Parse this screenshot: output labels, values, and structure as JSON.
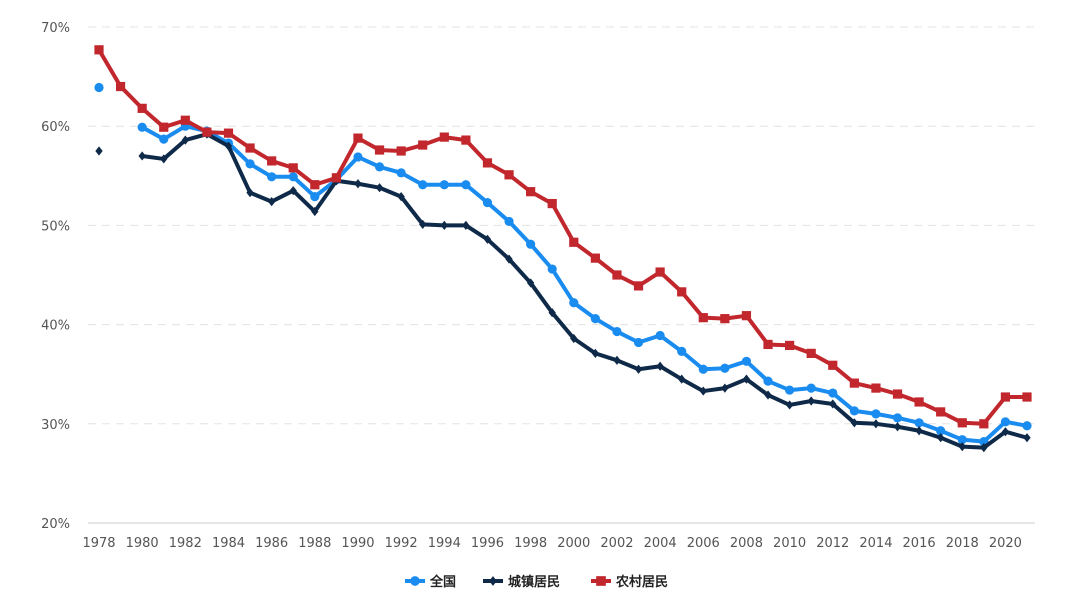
{
  "chart_data": {
    "type": "line",
    "title": "",
    "xlabel": "",
    "ylabel": "",
    "ylim": [
      20,
      70
    ],
    "y_ticks": [
      20,
      30,
      40,
      50,
      60,
      70
    ],
    "y_tick_labels": [
      "20%",
      "30%",
      "40%",
      "50%",
      "60%",
      "70%"
    ],
    "xlim": [
      1978,
      2021
    ],
    "x_ticks": [
      "1978",
      "1980",
      "1982",
      "1984",
      "1986",
      "1988",
      "1990",
      "1992",
      "1994",
      "1996",
      "1998",
      "2000",
      "2002",
      "2004",
      "2006",
      "2008",
      "2010",
      "2012",
      "2014",
      "2016",
      "2018",
      "2020"
    ],
    "grid": true,
    "legend_position": "bottom-center",
    "x": [
      1978,
      1979,
      1980,
      1981,
      1982,
      1983,
      1984,
      1985,
      1986,
      1987,
      1988,
      1989,
      1990,
      1991,
      1992,
      1993,
      1994,
      1995,
      1996,
      1997,
      1998,
      1999,
      2000,
      2001,
      2002,
      2003,
      2004,
      2005,
      2006,
      2007,
      2008,
      2009,
      2010,
      2011,
      2012,
      2013,
      2014,
      2015,
      2016,
      2017,
      2018,
      2019,
      2020,
      2021
    ],
    "series": [
      {
        "name": "全国",
        "color": "#1a8cf0",
        "marker": "circle",
        "values": [
          63.9,
          null,
          59.9,
          58.7,
          60.0,
          59.5,
          58.3,
          56.2,
          54.9,
          54.9,
          52.9,
          54.6,
          56.9,
          55.9,
          55.3,
          54.1,
          54.1,
          54.1,
          52.3,
          50.4,
          48.1,
          45.6,
          42.2,
          40.6,
          39.3,
          38.2,
          38.9,
          37.3,
          35.5,
          35.6,
          36.3,
          34.3,
          33.4,
          33.6,
          33.1,
          31.3,
          31.0,
          30.6,
          30.1,
          29.3,
          28.4,
          28.2,
          30.2,
          29.8
        ]
      },
      {
        "name": "城镇居民",
        "color": "#0f2a48",
        "marker": "diamond",
        "values": [
          57.5,
          null,
          57.0,
          56.7,
          58.6,
          59.2,
          58.0,
          53.3,
          52.4,
          53.5,
          51.4,
          54.5,
          54.2,
          53.8,
          52.9,
          50.1,
          50.0,
          50.0,
          48.6,
          46.6,
          44.2,
          41.2,
          38.6,
          37.1,
          36.4,
          35.5,
          35.8,
          34.5,
          33.3,
          33.6,
          34.5,
          32.9,
          31.9,
          32.3,
          32.0,
          30.1,
          30.0,
          29.7,
          29.3,
          28.6,
          27.7,
          27.6,
          29.2,
          28.6
        ]
      },
      {
        "name": "农村居民",
        "color": "#c1272d",
        "marker": "square",
        "values": [
          67.7,
          64.0,
          61.8,
          59.9,
          60.6,
          59.4,
          59.3,
          57.8,
          56.5,
          55.8,
          54.1,
          54.8,
          58.8,
          57.6,
          57.5,
          58.1,
          58.9,
          58.6,
          56.3,
          55.1,
          53.4,
          52.2,
          48.3,
          46.7,
          45.0,
          43.9,
          45.3,
          43.3,
          40.7,
          40.6,
          40.9,
          38.0,
          37.9,
          37.1,
          35.9,
          34.1,
          33.6,
          33.0,
          32.2,
          31.2,
          30.1,
          30.0,
          32.7,
          32.7
        ]
      }
    ]
  }
}
